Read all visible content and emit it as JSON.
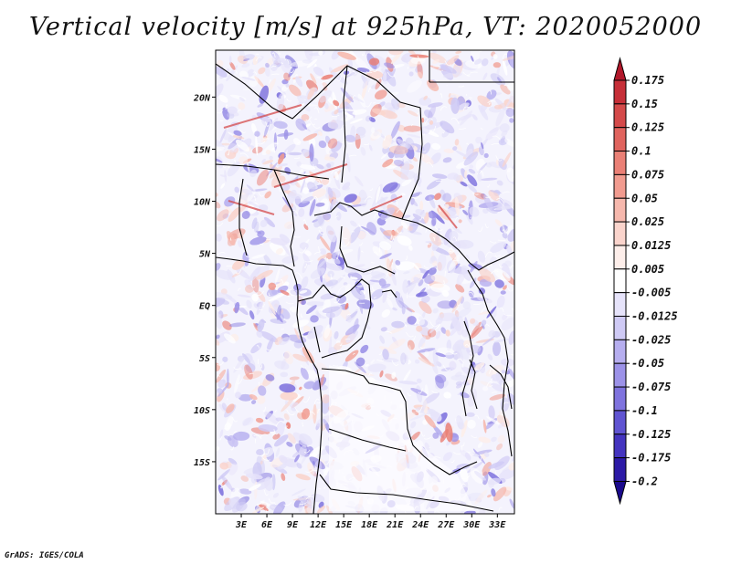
{
  "title": "Vertical velocity [m/s] at 925hPa, VT: 2020052000",
  "credit": "GrADS: IGES/COLA",
  "map": {
    "lat_labels": [
      "20N",
      "15N",
      "10N",
      "5N",
      "EQ",
      "5S",
      "10S",
      "15S"
    ],
    "lon_labels": [
      "3E",
      "6E",
      "9E",
      "12E",
      "15E",
      "18E",
      "21E",
      "24E",
      "27E",
      "30E",
      "33E"
    ],
    "lat_range": [
      -20,
      24.5
    ],
    "lon_range": [
      0,
      35
    ]
  },
  "colorbar": {
    "labels": [
      "0.175",
      "0.15",
      "0.125",
      "0.1",
      "0.075",
      "0.05",
      "0.025",
      "0.0125",
      "0.005",
      "-0.005",
      "-0.0125",
      "-0.025",
      "-0.05",
      "-0.075",
      "-0.1",
      "-0.125",
      "-0.175",
      "-0.2"
    ],
    "colors": [
      "#b2182b",
      "#c62f38",
      "#d44a4a",
      "#e0645e",
      "#ea8076",
      "#f19b8f",
      "#f6b8ad",
      "#fad4cc",
      "#fdeeea",
      "#ffffff",
      "#e6e3fa",
      "#cfcaf5",
      "#b6aeef",
      "#9c92e8",
      "#7f73de",
      "#6054d2",
      "#4434bf",
      "#2c1aa6",
      "#1a0a8c"
    ]
  }
}
